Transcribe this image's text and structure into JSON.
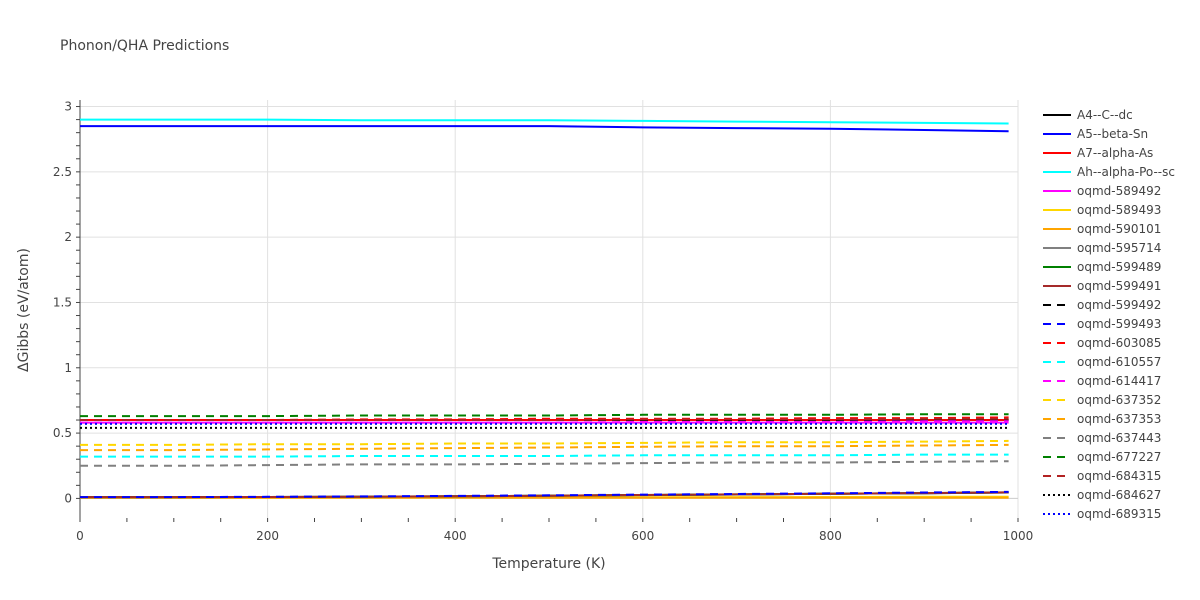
{
  "chart_data": {
    "type": "line",
    "title": "Phonon/QHA Predictions",
    "xlabel": "Temperature (K)",
    "ylabel": "ΔGibbs (eV/atom)",
    "xlim": [
      0,
      1000
    ],
    "ylim": [
      -0.15,
      3.05
    ],
    "x_ticks": [
      0,
      200,
      400,
      600,
      800,
      1000
    ],
    "y_ticks": [
      0,
      0.5,
      1,
      1.5,
      2,
      2.5,
      3
    ],
    "grid": true,
    "legend_position": "right",
    "x": [
      0,
      100,
      200,
      300,
      400,
      500,
      600,
      700,
      800,
      900,
      990
    ],
    "series": [
      {
        "name": "A4--C--dc",
        "color": "#000000",
        "dash": "solid",
        "values": [
          0.01,
          0.01,
          0.01,
          0.012,
          0.015,
          0.02,
          0.025,
          0.03,
          0.035,
          0.04,
          0.045
        ]
      },
      {
        "name": "A5--beta-Sn",
        "color": "#0000ff",
        "dash": "solid",
        "values": [
          2.85,
          2.85,
          2.85,
          2.85,
          2.85,
          2.85,
          2.84,
          2.835,
          2.83,
          2.82,
          2.81
        ]
      },
      {
        "name": "A7--alpha-As",
        "color": "#ff0000",
        "dash": "solid",
        "values": [
          0.6,
          0.6,
          0.6,
          0.6,
          0.6,
          0.6,
          0.6,
          0.6,
          0.6,
          0.6,
          0.6
        ]
      },
      {
        "name": "Ah--alpha-Po--sc",
        "color": "#00ffff",
        "dash": "solid",
        "values": [
          2.9,
          2.9,
          2.9,
          2.895,
          2.895,
          2.895,
          2.89,
          2.885,
          2.88,
          2.875,
          2.87
        ]
      },
      {
        "name": "oqmd-589492",
        "color": "#ff00ff",
        "dash": "solid",
        "values": [
          0.58,
          0.58,
          0.58,
          0.58,
          0.58,
          0.58,
          0.58,
          0.58,
          0.58,
          0.58,
          0.58
        ]
      },
      {
        "name": "oqmd-589493",
        "color": "#ffd700",
        "dash": "solid",
        "values": [
          0.005,
          0.005,
          0.005,
          0.006,
          0.007,
          0.008,
          0.009,
          0.01,
          0.011,
          0.012,
          0.013
        ]
      },
      {
        "name": "oqmd-590101",
        "color": "#ffa500",
        "dash": "solid",
        "values": [
          0.005,
          0.005,
          0.005,
          0.005,
          0.005,
          0.005,
          0.005,
          0.005,
          0.005,
          0.005,
          0.005
        ]
      },
      {
        "name": "oqmd-595714",
        "color": "#808080",
        "dash": "solid",
        "values": [
          0.01,
          0.01,
          0.011,
          0.013,
          0.016,
          0.02,
          0.025,
          0.03,
          0.035,
          0.04,
          0.045
        ]
      },
      {
        "name": "oqmd-599489",
        "color": "#008000",
        "dash": "solid",
        "values": [
          0.01,
          0.01,
          0.011,
          0.013,
          0.016,
          0.021,
          0.026,
          0.031,
          0.036,
          0.041,
          0.046
        ]
      },
      {
        "name": "oqmd-599491",
        "color": "#a52a2a",
        "dash": "solid",
        "values": [
          0.01,
          0.01,
          0.011,
          0.013,
          0.016,
          0.021,
          0.026,
          0.031,
          0.036,
          0.041,
          0.046
        ]
      },
      {
        "name": "oqmd-599492",
        "color": "#000000",
        "dash": "dash",
        "values": [
          0.6,
          0.6,
          0.6,
          0.6,
          0.6,
          0.6,
          0.6,
          0.6,
          0.6,
          0.6,
          0.6
        ]
      },
      {
        "name": "oqmd-599493",
        "color": "#0000ff",
        "dash": "dash",
        "values": [
          0.01,
          0.01,
          0.012,
          0.015,
          0.019,
          0.024,
          0.029,
          0.034,
          0.039,
          0.045,
          0.05
        ]
      },
      {
        "name": "oqmd-603085",
        "color": "#ff0000",
        "dash": "dash",
        "values": [
          0.6,
          0.6,
          0.6,
          0.605,
          0.605,
          0.61,
          0.61,
          0.61,
          0.615,
          0.615,
          0.62
        ]
      },
      {
        "name": "oqmd-610557",
        "color": "#00ffff",
        "dash": "dash",
        "values": [
          0.32,
          0.32,
          0.32,
          0.325,
          0.325,
          0.325,
          0.33,
          0.33,
          0.33,
          0.335,
          0.335
        ]
      },
      {
        "name": "oqmd-614417",
        "color": "#ff00ff",
        "dash": "dash",
        "values": [
          0.58,
          0.58,
          0.58,
          0.58,
          0.58,
          0.58,
          0.585,
          0.585,
          0.585,
          0.59,
          0.59
        ]
      },
      {
        "name": "oqmd-637352",
        "color": "#ffd700",
        "dash": "dash",
        "values": [
          0.41,
          0.41,
          0.415,
          0.415,
          0.42,
          0.42,
          0.425,
          0.43,
          0.43,
          0.435,
          0.44
        ]
      },
      {
        "name": "oqmd-637353",
        "color": "#ffa500",
        "dash": "dash",
        "values": [
          0.37,
          0.37,
          0.375,
          0.38,
          0.385,
          0.39,
          0.395,
          0.4,
          0.4,
          0.405,
          0.41
        ]
      },
      {
        "name": "oqmd-637443",
        "color": "#808080",
        "dash": "dash",
        "values": [
          0.25,
          0.25,
          0.255,
          0.26,
          0.26,
          0.265,
          0.27,
          0.275,
          0.275,
          0.28,
          0.285
        ]
      },
      {
        "name": "oqmd-677227",
        "color": "#008000",
        "dash": "dash",
        "values": [
          0.63,
          0.63,
          0.63,
          0.635,
          0.635,
          0.635,
          0.64,
          0.64,
          0.64,
          0.645,
          0.645
        ]
      },
      {
        "name": "oqmd-684315",
        "color": "#b22222",
        "dash": "dash",
        "values": [
          0.6,
          0.6,
          0.6,
          0.6,
          0.6,
          0.6,
          0.605,
          0.605,
          0.605,
          0.61,
          0.61
        ]
      },
      {
        "name": "oqmd-684627",
        "color": "#000000",
        "dash": "dot",
        "values": [
          0.54,
          0.54,
          0.54,
          0.54,
          0.54,
          0.54,
          0.54,
          0.54,
          0.54,
          0.54,
          0.54
        ]
      },
      {
        "name": "oqmd-689315",
        "color": "#0000ff",
        "dash": "dot",
        "values": [
          0.57,
          0.57,
          0.57,
          0.57,
          0.57,
          0.57,
          0.57,
          0.57,
          0.57,
          0.57,
          0.57
        ]
      }
    ]
  }
}
